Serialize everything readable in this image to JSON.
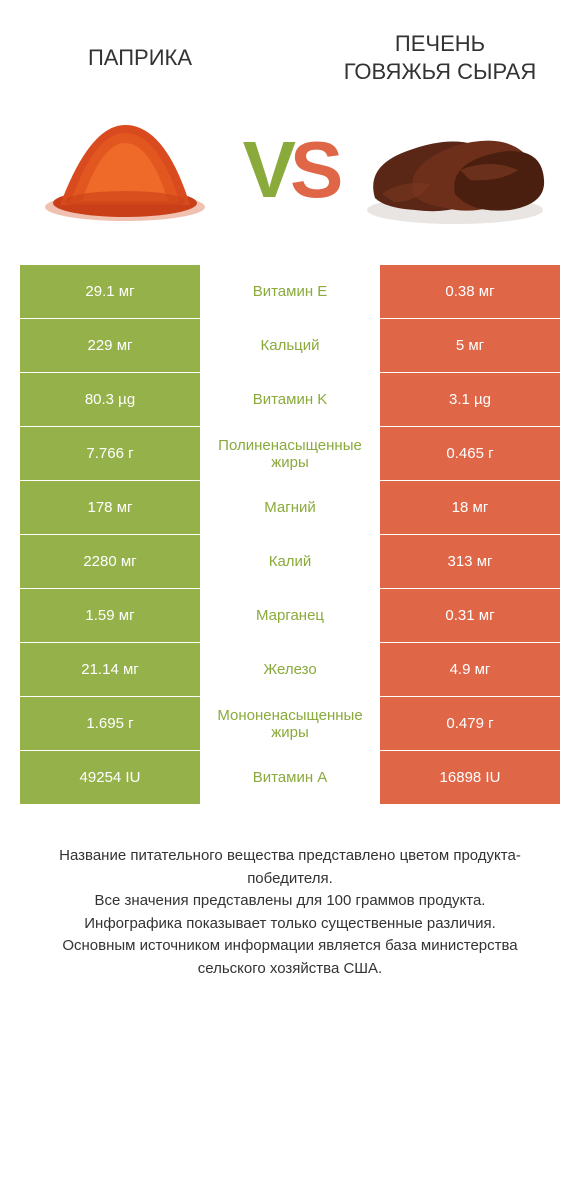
{
  "colors": {
    "left_bg": "#95b24a",
    "right_bg": "#e06648",
    "left_text": "#8aaa3b",
    "right_text": "#e06648",
    "page_bg": "#ffffff"
  },
  "header": {
    "left_title": "ПАПРИКА",
    "right_title": "ПЕЧЕНЬ ГОВЯЖЬЯ СЫРАЯ",
    "vs_v": "V",
    "vs_s": "S"
  },
  "images": {
    "left_alt": "paprika-powder",
    "right_alt": "raw-beef-liver"
  },
  "comparison": {
    "type": "table",
    "left_bg": "#95b24a",
    "right_bg": "#e06648",
    "rows": [
      {
        "left": "29.1 мг",
        "label": "Витамин E",
        "right": "0.38 мг",
        "winner": "left"
      },
      {
        "left": "229 мг",
        "label": "Кальций",
        "right": "5 мг",
        "winner": "left"
      },
      {
        "left": "80.3 µg",
        "label": "Витамин K",
        "right": "3.1 µg",
        "winner": "left"
      },
      {
        "left": "7.766 г",
        "label": "Полиненасыщенные жиры",
        "right": "0.465 г",
        "winner": "left"
      },
      {
        "left": "178 мг",
        "label": "Магний",
        "right": "18 мг",
        "winner": "left"
      },
      {
        "left": "2280 мг",
        "label": "Калий",
        "right": "313 мг",
        "winner": "left"
      },
      {
        "left": "1.59 мг",
        "label": "Марганец",
        "right": "0.31 мг",
        "winner": "left"
      },
      {
        "left": "21.14 мг",
        "label": "Железо",
        "right": "4.9 мг",
        "winner": "left"
      },
      {
        "left": "1.695 г",
        "label": "Мононенасыщенные жиры",
        "right": "0.479 г",
        "winner": "left"
      },
      {
        "left": "49254 IU",
        "label": "Витамин A",
        "right": "16898 IU",
        "winner": "left"
      }
    ]
  },
  "footer": {
    "lines": [
      "Название питательного вещества представлено цветом продукта-победителя.",
      "Все значения представлены для 100 граммов продукта.",
      "Инфографика показывает только существенные различия.",
      "Основным источником информации является база министерства сельского хозяйства США."
    ]
  }
}
